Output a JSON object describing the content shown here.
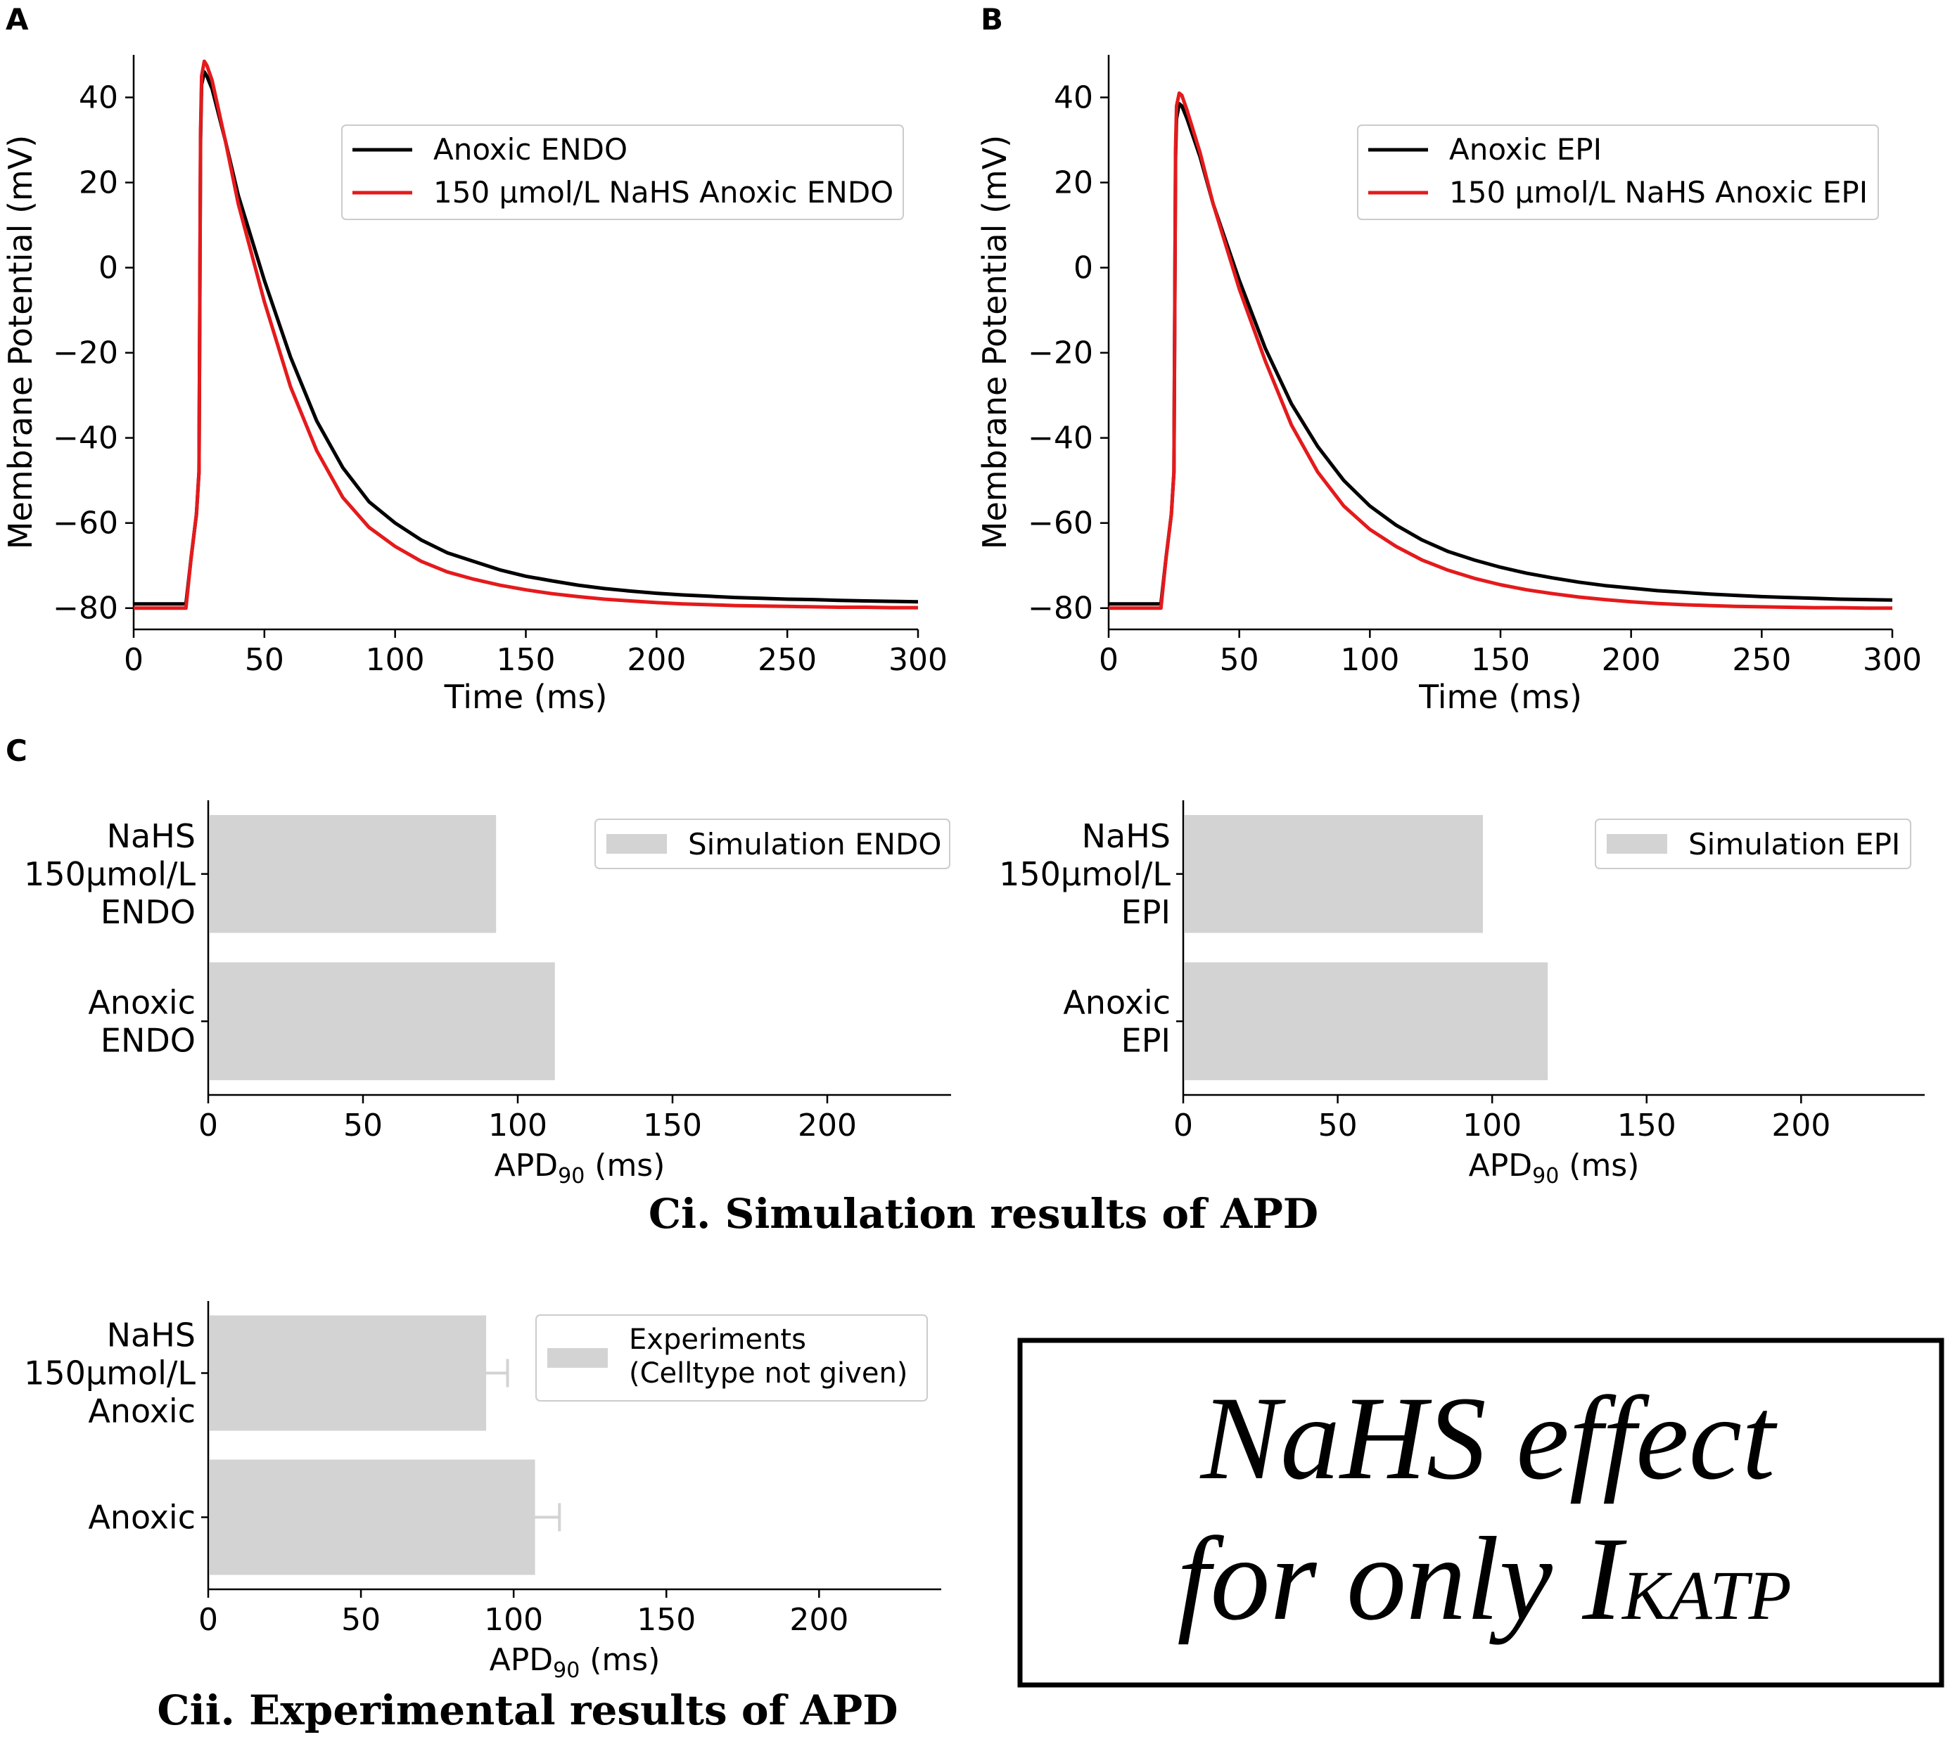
{
  "panel_labels": {
    "a": "A",
    "b": "B",
    "c": "C"
  },
  "captions": {
    "ci": "Ci. Simulation results of APD",
    "cii": "Cii. Experimental results of APD"
  },
  "note_box": {
    "line1": "NaHS effect",
    "line2_prefix": "for only I",
    "line2_subscript": "KATP"
  },
  "colors": {
    "black_trace": "#000000",
    "red_trace": "#e41a1c",
    "bar": "#d3d3d3",
    "errorbar": "#d3d3d3"
  },
  "chart_data": [
    {
      "id": "A",
      "type": "line",
      "xlabel": "Time (ms)",
      "ylabel": "Membrane Potential (mV)",
      "xlim": [
        0,
        300
      ],
      "ylim": [
        -85,
        50
      ],
      "xticks": [
        0,
        50,
        100,
        150,
        200,
        250,
        300
      ],
      "xtick_labels": [
        "0",
        "50",
        "100",
        "150",
        "200",
        "250",
        "300"
      ],
      "yticks": [
        40,
        20,
        0,
        -20,
        -40,
        -60,
        -80
      ],
      "ytick_labels": [
        "40",
        "20",
        "0",
        "−20",
        "−40",
        "−60",
        "−80"
      ],
      "legend": "top-right",
      "series": [
        {
          "name": "Anoxic ENDO",
          "color": "#000000",
          "x": [
            0,
            20,
            22,
            24,
            25,
            25.6,
            26,
            27,
            28,
            30,
            35,
            40,
            50,
            60,
            70,
            80,
            90,
            100,
            110,
            120,
            130,
            140,
            150,
            160,
            170,
            180,
            190,
            200,
            210,
            220,
            230,
            240,
            250,
            260,
            270,
            280,
            290,
            300
          ],
          "y": [
            -79,
            -79,
            -68,
            -58,
            -48,
            30,
            43,
            46,
            45,
            42,
            30,
            17,
            -3,
            -21,
            -36,
            -47,
            -55,
            -60,
            -64,
            -67,
            -69,
            -71,
            -72.5,
            -73.6,
            -74.6,
            -75.4,
            -76,
            -76.5,
            -76.9,
            -77.2,
            -77.5,
            -77.7,
            -77.9,
            -78,
            -78.2,
            -78.3,
            -78.4,
            -78.5
          ]
        },
        {
          "name": "150 μmol/L NaHS Anoxic ENDO",
          "color": "#e41a1c",
          "x": [
            0,
            20,
            22,
            24,
            25,
            25.6,
            26,
            27,
            28,
            30,
            35,
            40,
            50,
            60,
            70,
            80,
            90,
            100,
            110,
            120,
            130,
            140,
            150,
            160,
            170,
            180,
            190,
            200,
            210,
            220,
            230,
            240,
            250,
            260,
            270,
            280,
            290,
            300
          ],
          "y": [
            -80,
            -80,
            -68,
            -58,
            -48,
            32,
            45,
            48.5,
            47.5,
            44,
            30,
            15,
            -8,
            -28,
            -43,
            -54,
            -61,
            -65.5,
            -69,
            -71.5,
            -73.2,
            -74.6,
            -75.7,
            -76.6,
            -77.3,
            -77.9,
            -78.3,
            -78.7,
            -79,
            -79.2,
            -79.4,
            -79.5,
            -79.6,
            -79.7,
            -79.8,
            -79.8,
            -79.9,
            -79.9
          ]
        }
      ]
    },
    {
      "id": "B",
      "type": "line",
      "xlabel": "Time (ms)",
      "ylabel": "Membrane Potential (mV)",
      "xlim": [
        0,
        300
      ],
      "ylim": [
        -85,
        50
      ],
      "xticks": [
        0,
        50,
        100,
        150,
        200,
        250,
        300
      ],
      "xtick_labels": [
        "0",
        "50",
        "100",
        "150",
        "200",
        "250",
        "300"
      ],
      "yticks": [
        40,
        20,
        0,
        -20,
        -40,
        -60,
        -80
      ],
      "ytick_labels": [
        "40",
        "20",
        "0",
        "−20",
        "−40",
        "−60",
        "−80"
      ],
      "legend": "top-right",
      "series": [
        {
          "name": "Anoxic EPI",
          "color": "#000000",
          "x": [
            0,
            20,
            22,
            24,
            25,
            25.6,
            26,
            27,
            28,
            30,
            35,
            40,
            50,
            60,
            70,
            80,
            90,
            100,
            110,
            120,
            130,
            140,
            150,
            160,
            170,
            180,
            190,
            200,
            210,
            220,
            230,
            240,
            250,
            260,
            270,
            280,
            290,
            300
          ],
          "y": [
            -79,
            -79,
            -68,
            -58,
            -48,
            26,
            35,
            38.5,
            38,
            35,
            26,
            15,
            -3,
            -19,
            -32,
            -42,
            -50,
            -56,
            -60.5,
            -64,
            -66.7,
            -68.7,
            -70.4,
            -71.8,
            -72.9,
            -73.9,
            -74.7,
            -75.3,
            -75.9,
            -76.3,
            -76.7,
            -77,
            -77.3,
            -77.5,
            -77.7,
            -77.9,
            -78,
            -78.1
          ]
        },
        {
          "name": "150 μmol/L NaHS Anoxic EPI",
          "color": "#e41a1c",
          "x": [
            0,
            20,
            22,
            24,
            25,
            25.6,
            26,
            27,
            28,
            30,
            35,
            40,
            50,
            60,
            70,
            80,
            90,
            100,
            110,
            120,
            130,
            140,
            150,
            160,
            170,
            180,
            190,
            200,
            210,
            220,
            230,
            240,
            250,
            260,
            270,
            280,
            290,
            300
          ],
          "y": [
            -80,
            -80,
            -68,
            -58,
            -48,
            28,
            38,
            41,
            40.5,
            37,
            27,
            15,
            -5,
            -22,
            -37,
            -48,
            -56,
            -61.5,
            -65.5,
            -68.7,
            -71.1,
            -73,
            -74.5,
            -75.7,
            -76.6,
            -77.4,
            -78,
            -78.5,
            -78.9,
            -79.2,
            -79.4,
            -79.6,
            -79.7,
            -79.8,
            -79.9,
            -79.9,
            -80,
            -80
          ]
        }
      ]
    },
    {
      "id": "Ci-ENDO",
      "type": "bar",
      "xlabel_main": "APD",
      "xlabel_sub": "90",
      "xlabel_unit": " (ms)",
      "xlim": [
        0,
        240
      ],
      "xticks": [
        0,
        50,
        100,
        150,
        200
      ],
      "xtick_labels": [
        "0",
        "50",
        "100",
        "150",
        "200"
      ],
      "legend": "top-right",
      "legend_entries": [
        "Simulation ENDO"
      ],
      "categories": [
        [
          "NaHS",
          "150μmol/L",
          "ENDO"
        ],
        [
          "Anoxic",
          "ENDO"
        ]
      ],
      "values": [
        93,
        112
      ]
    },
    {
      "id": "Ci-EPI",
      "type": "bar",
      "xlabel_main": "APD",
      "xlabel_sub": "90",
      "xlabel_unit": " (ms)",
      "xlim": [
        0,
        240
      ],
      "xticks": [
        0,
        50,
        100,
        150,
        200
      ],
      "xtick_labels": [
        "0",
        "50",
        "100",
        "150",
        "200"
      ],
      "legend": "top-right",
      "legend_entries": [
        "Simulation EPI"
      ],
      "categories": [
        [
          "NaHS",
          "150μmol/L",
          "EPI"
        ],
        [
          "Anoxic",
          "EPI"
        ]
      ],
      "values": [
        97,
        118
      ]
    },
    {
      "id": "Cii",
      "type": "bar",
      "xlabel_main": "APD",
      "xlabel_sub": "90",
      "xlabel_unit": " (ms)",
      "xlim": [
        0,
        240
      ],
      "xticks": [
        0,
        50,
        100,
        150,
        200
      ],
      "xtick_labels": [
        "0",
        "50",
        "100",
        "150",
        "200"
      ],
      "legend": "top-right",
      "legend_entries": [
        "Experiments",
        "(Celltype not given)"
      ],
      "categories": [
        [
          "NaHS",
          "150μmol/L",
          "Anoxic"
        ],
        [
          "Anoxic"
        ]
      ],
      "values": [
        91,
        107
      ],
      "errors": [
        7,
        8
      ]
    }
  ]
}
